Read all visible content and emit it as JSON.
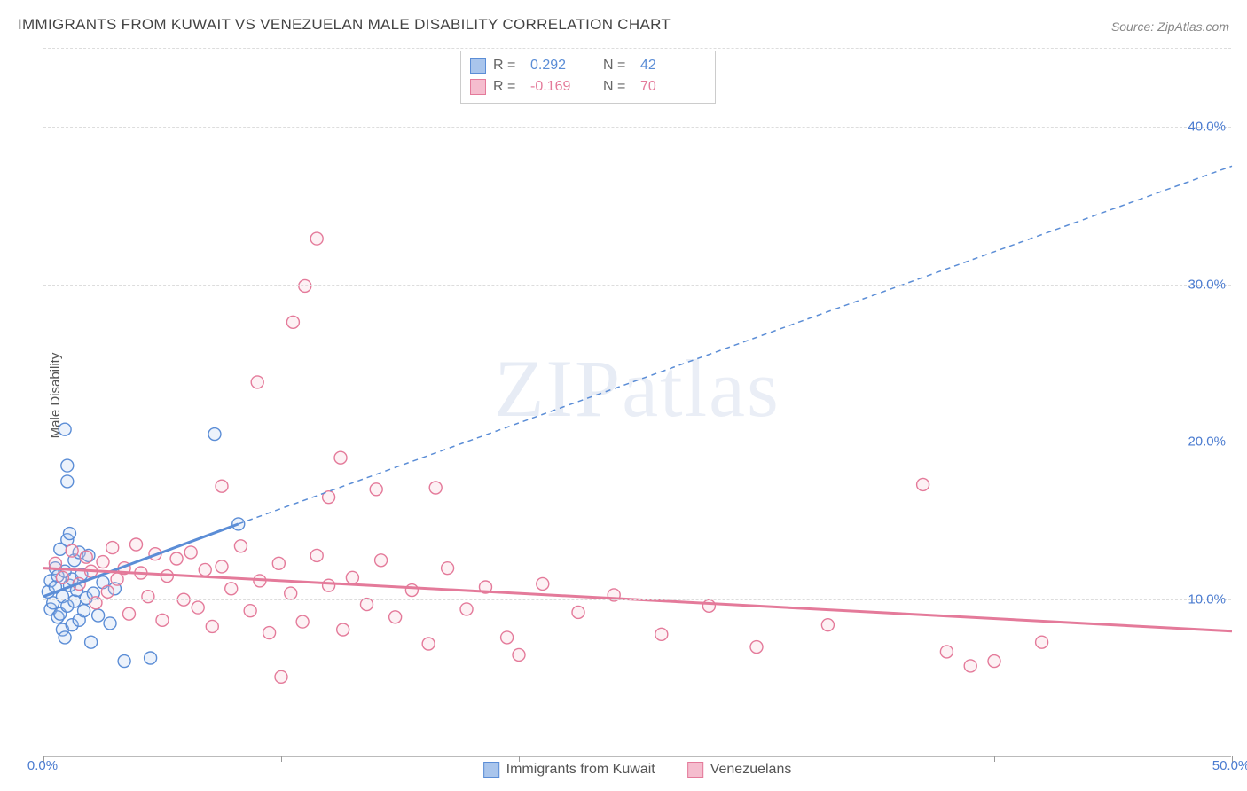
{
  "title": "IMMIGRANTS FROM KUWAIT VS VENEZUELAN MALE DISABILITY CORRELATION CHART",
  "source_prefix": "Source: ",
  "source_name": "ZipAtlas.com",
  "watermark": "ZIPatlas",
  "y_axis_label": "Male Disability",
  "chart": {
    "type": "scatter",
    "x_range": [
      0,
      50
    ],
    "y_range": [
      0,
      45
    ],
    "x_ticks": [
      0,
      10,
      20,
      30,
      40,
      50
    ],
    "x_tick_labels": {
      "0": "0.0%",
      "50": "50.0%"
    },
    "y_ticks": [
      10,
      20,
      30,
      40
    ],
    "y_tick_labels": [
      "10.0%",
      "20.0%",
      "30.0%",
      "40.0%"
    ],
    "grid_color": "#dddddd",
    "axis_color": "#bbbbbb",
    "tick_label_color": "#4a7bd0",
    "tick_label_fontsize": 15,
    "background_color": "#ffffff",
    "marker_radius": 7,
    "marker_stroke_width": 1.4,
    "marker_fill_opacity": 0.22,
    "trend_line_width_solid": 3,
    "trend_line_width_dashed": 1.5,
    "trend_dash": "6,5"
  },
  "series": [
    {
      "name": "Immigrants from Kuwait",
      "color_stroke": "#5b8dd6",
      "color_fill": "#a9c5ec",
      "R": "0.292",
      "N": "42",
      "trend": {
        "solid": [
          [
            0,
            10.2
          ],
          [
            8.2,
            14.8
          ]
        ],
        "dashed": [
          [
            8.2,
            14.8
          ],
          [
            50,
            37.5
          ]
        ]
      },
      "points": [
        [
          0.2,
          10.5
        ],
        [
          0.3,
          11.2
        ],
        [
          0.3,
          9.4
        ],
        [
          0.4,
          9.8
        ],
        [
          0.5,
          10.8
        ],
        [
          0.5,
          12.0
        ],
        [
          0.6,
          8.9
        ],
        [
          0.6,
          11.5
        ],
        [
          0.7,
          13.2
        ],
        [
          0.7,
          9.1
        ],
        [
          0.8,
          10.2
        ],
        [
          0.8,
          8.1
        ],
        [
          0.9,
          11.8
        ],
        [
          0.9,
          7.6
        ],
        [
          1.0,
          13.8
        ],
        [
          1.0,
          9.6
        ],
        [
          1.1,
          10.9
        ],
        [
          1.1,
          14.2
        ],
        [
          1.2,
          8.4
        ],
        [
          1.2,
          11.3
        ],
        [
          1.3,
          9.9
        ],
        [
          1.3,
          12.5
        ],
        [
          1.4,
          10.6
        ],
        [
          1.5,
          8.7
        ],
        [
          1.5,
          13.0
        ],
        [
          1.6,
          11.6
        ],
        [
          1.7,
          9.3
        ],
        [
          1.8,
          10.1
        ],
        [
          1.9,
          12.8
        ],
        [
          2.0,
          7.3
        ],
        [
          2.1,
          10.4
        ],
        [
          2.3,
          9.0
        ],
        [
          2.5,
          11.1
        ],
        [
          2.8,
          8.5
        ],
        [
          3.0,
          10.7
        ],
        [
          3.4,
          6.1
        ],
        [
          1.0,
          17.5
        ],
        [
          1.0,
          18.5
        ],
        [
          0.9,
          20.8
        ],
        [
          7.2,
          20.5
        ],
        [
          8.2,
          14.8
        ],
        [
          4.5,
          6.3
        ]
      ]
    },
    {
      "name": "Venezuelans",
      "color_stroke": "#e47a9a",
      "color_fill": "#f5bdce",
      "R": "-0.169",
      "N": "70",
      "trend": {
        "solid": [
          [
            0,
            12.0
          ],
          [
            50,
            8.0
          ]
        ],
        "dashed": null
      },
      "points": [
        [
          0.5,
          12.3
        ],
        [
          0.8,
          11.4
        ],
        [
          1.2,
          13.1
        ],
        [
          1.5,
          11.0
        ],
        [
          1.8,
          12.7
        ],
        [
          2.0,
          11.8
        ],
        [
          2.2,
          9.8
        ],
        [
          2.5,
          12.4
        ],
        [
          2.7,
          10.5
        ],
        [
          2.9,
          13.3
        ],
        [
          3.1,
          11.3
        ],
        [
          3.4,
          12.0
        ],
        [
          3.6,
          9.1
        ],
        [
          3.9,
          13.5
        ],
        [
          4.1,
          11.7
        ],
        [
          4.4,
          10.2
        ],
        [
          4.7,
          12.9
        ],
        [
          5.0,
          8.7
        ],
        [
          5.2,
          11.5
        ],
        [
          5.6,
          12.6
        ],
        [
          5.9,
          10.0
        ],
        [
          6.2,
          13.0
        ],
        [
          6.5,
          9.5
        ],
        [
          6.8,
          11.9
        ],
        [
          7.1,
          8.3
        ],
        [
          7.5,
          12.1
        ],
        [
          7.9,
          10.7
        ],
        [
          8.3,
          13.4
        ],
        [
          8.7,
          9.3
        ],
        [
          9.1,
          11.2
        ],
        [
          9.5,
          7.9
        ],
        [
          9.9,
          12.3
        ],
        [
          10.4,
          10.4
        ],
        [
          10.9,
          8.6
        ],
        [
          11.5,
          12.8
        ],
        [
          12.0,
          10.9
        ],
        [
          12.5,
          19.0
        ],
        [
          12.6,
          8.1
        ],
        [
          13.0,
          11.4
        ],
        [
          13.6,
          9.7
        ],
        [
          14.2,
          12.5
        ],
        [
          14.8,
          8.9
        ],
        [
          15.5,
          10.6
        ],
        [
          16.2,
          7.2
        ],
        [
          17.0,
          12.0
        ],
        [
          17.8,
          9.4
        ],
        [
          18.6,
          10.8
        ],
        [
          19.5,
          7.6
        ],
        [
          20.0,
          6.5
        ],
        [
          21.0,
          11.0
        ],
        [
          22.5,
          9.2
        ],
        [
          24.0,
          10.3
        ],
        [
          26.0,
          7.8
        ],
        [
          28.0,
          9.6
        ],
        [
          30.0,
          7.0
        ],
        [
          33.0,
          8.4
        ],
        [
          37.0,
          17.3
        ],
        [
          38.0,
          6.7
        ],
        [
          39.0,
          5.8
        ],
        [
          40.0,
          6.1
        ],
        [
          42.0,
          7.3
        ],
        [
          7.5,
          17.2
        ],
        [
          9.0,
          23.8
        ],
        [
          10.5,
          27.6
        ],
        [
          11.0,
          29.9
        ],
        [
          11.5,
          32.9
        ],
        [
          12.0,
          16.5
        ],
        [
          14.0,
          17.0
        ],
        [
          16.5,
          17.1
        ],
        [
          10.0,
          5.1
        ]
      ]
    }
  ],
  "legend_top": {
    "r_label": "R =",
    "n_label": "N ="
  },
  "legend_bottom": [
    "Immigrants from Kuwait",
    "Venezuelans"
  ]
}
